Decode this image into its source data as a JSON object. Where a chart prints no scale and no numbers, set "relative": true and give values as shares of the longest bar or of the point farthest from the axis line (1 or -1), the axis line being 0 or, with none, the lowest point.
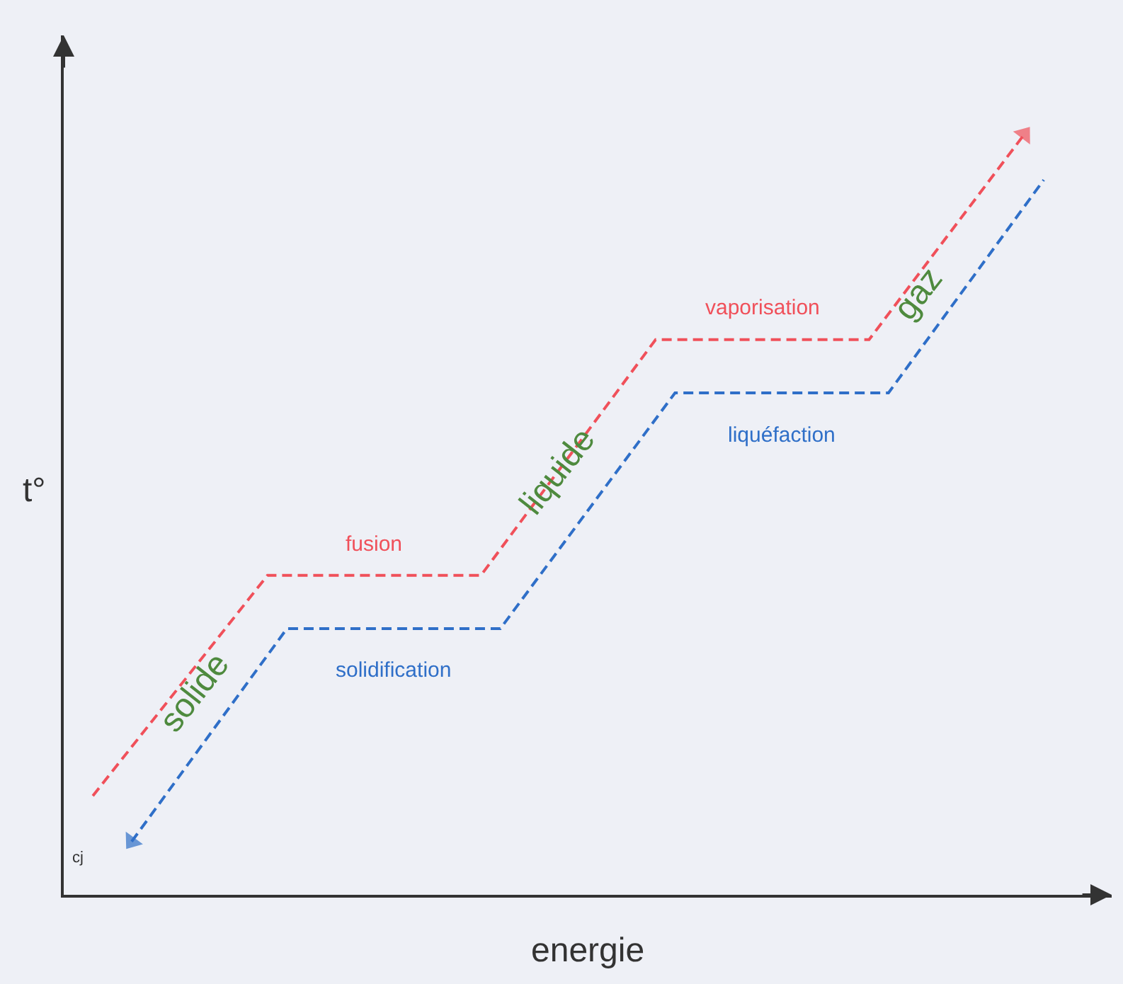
{
  "chart_data": {
    "type": "line",
    "relative": true,
    "xlabel": "energie",
    "ylabel": "t°",
    "grid": false,
    "line_style": "dashed",
    "marker": "none",
    "categories": [
      null,
      null,
      null,
      null,
      null,
      null,
      null,
      null,
      null,
      null,
      null,
      null,
      null,
      null,
      null,
      null,
      null,
      null,
      null,
      null,
      null,
      null,
      null,
      null,
      null,
      null,
      null,
      null,
      null,
      null,
      null,
      null,
      null,
      null,
      null,
      null,
      null,
      null,
      null,
      null,
      null,
      null,
      null,
      null,
      null,
      null,
      null,
      null,
      null,
      null,
      null,
      null,
      null,
      null
    ],
    "series": [
      {
        "color": "#f0505a",
        "values": [
          null,
          0.13,
          null,
          null,
          null,
          null,
          null,
          null,
          null,
          null,
          0.42,
          null,
          null,
          null,
          null,
          null,
          null,
          null,
          null,
          null,
          null,
          0.42,
          null,
          null,
          null,
          null,
          null,
          null,
          null,
          null,
          0.73,
          null,
          null,
          null,
          null,
          null,
          null,
          null,
          null,
          null,
          null,
          0.73,
          null,
          null,
          null,
          null,
          null,
          null,
          null,
          1.0,
          null,
          null,
          null,
          null
        ]
      },
      {
        "color": "#2f6fc8",
        "values": [
          null,
          null,
          null,
          0.07,
          null,
          null,
          null,
          null,
          null,
          null,
          null,
          0.35,
          null,
          null,
          null,
          null,
          null,
          null,
          null,
          null,
          null,
          null,
          0.35,
          null,
          null,
          null,
          null,
          null,
          null,
          null,
          null,
          0.66,
          null,
          null,
          null,
          null,
          null,
          null,
          null,
          null,
          null,
          null,
          0.66,
          null,
          null,
          null,
          null,
          null,
          null,
          null,
          0.94,
          null,
          null,
          null
        ]
      }
    ],
    "annotations": [
      "fusion",
      "vaporisation",
      "solidification",
      "liquéfaction",
      "solide",
      "liquide",
      "gaz",
      "cj"
    ]
  }
}
